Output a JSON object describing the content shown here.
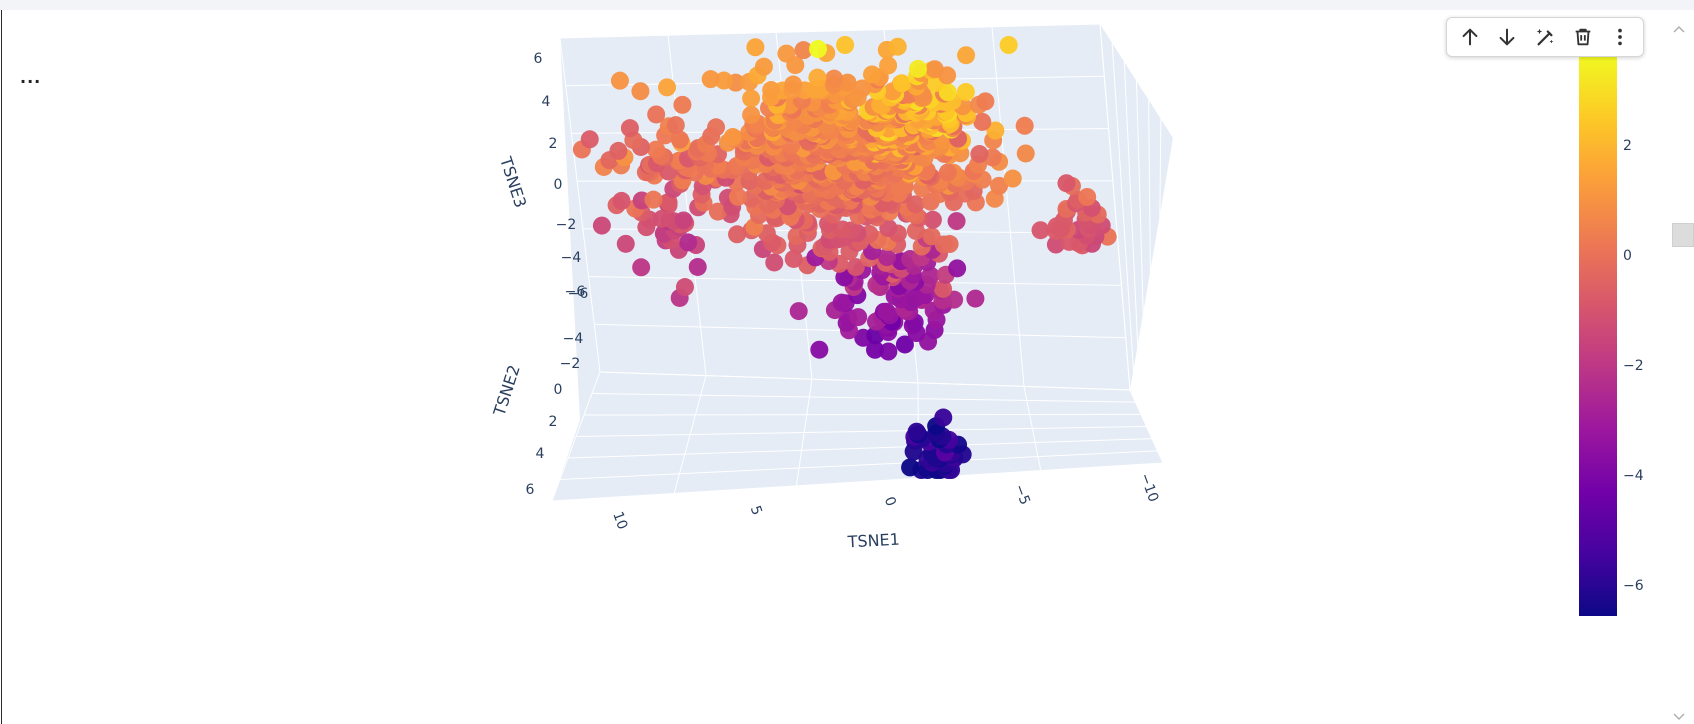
{
  "cell": {
    "collapsed_label": "..."
  },
  "toolbar": {
    "buttons": [
      {
        "name": "move-up",
        "icon": "arrow-up-icon"
      },
      {
        "name": "move-down",
        "icon": "arrow-down-icon"
      },
      {
        "name": "edit",
        "icon": "magic-wand-icon"
      },
      {
        "name": "delete",
        "icon": "trash-icon"
      },
      {
        "name": "more",
        "icon": "more-vertical-icon"
      }
    ]
  },
  "chart_data": {
    "type": "scatter",
    "dimensions": 3,
    "title": "",
    "xlabel": "TSNE1",
    "ylabel": "TSNE2",
    "zlabel": "TSNE3",
    "x_ticks": [
      "10",
      "5",
      "0",
      "−5",
      "−10"
    ],
    "y_ticks": [
      "−6",
      "−4",
      "−2",
      "0",
      "2",
      "4",
      "6"
    ],
    "z_ticks": [
      "6",
      "4",
      "2",
      "0",
      "−2",
      "−4",
      "−6"
    ],
    "colorbar": {
      "ticks": [
        "2",
        "0",
        "−2",
        "−4",
        "−6"
      ],
      "colorscale": [
        "#0d0887",
        "#46039f",
        "#7201a8",
        "#9c179e",
        "#bd3786",
        "#d8576b",
        "#ed7953",
        "#fb9f3a",
        "#fdca26",
        "#f0f921"
      ]
    },
    "axes_colors": {
      "background": "#e5ecf6",
      "grid": "#ffffff",
      "tick_text": "#2a3f5f"
    }
  }
}
